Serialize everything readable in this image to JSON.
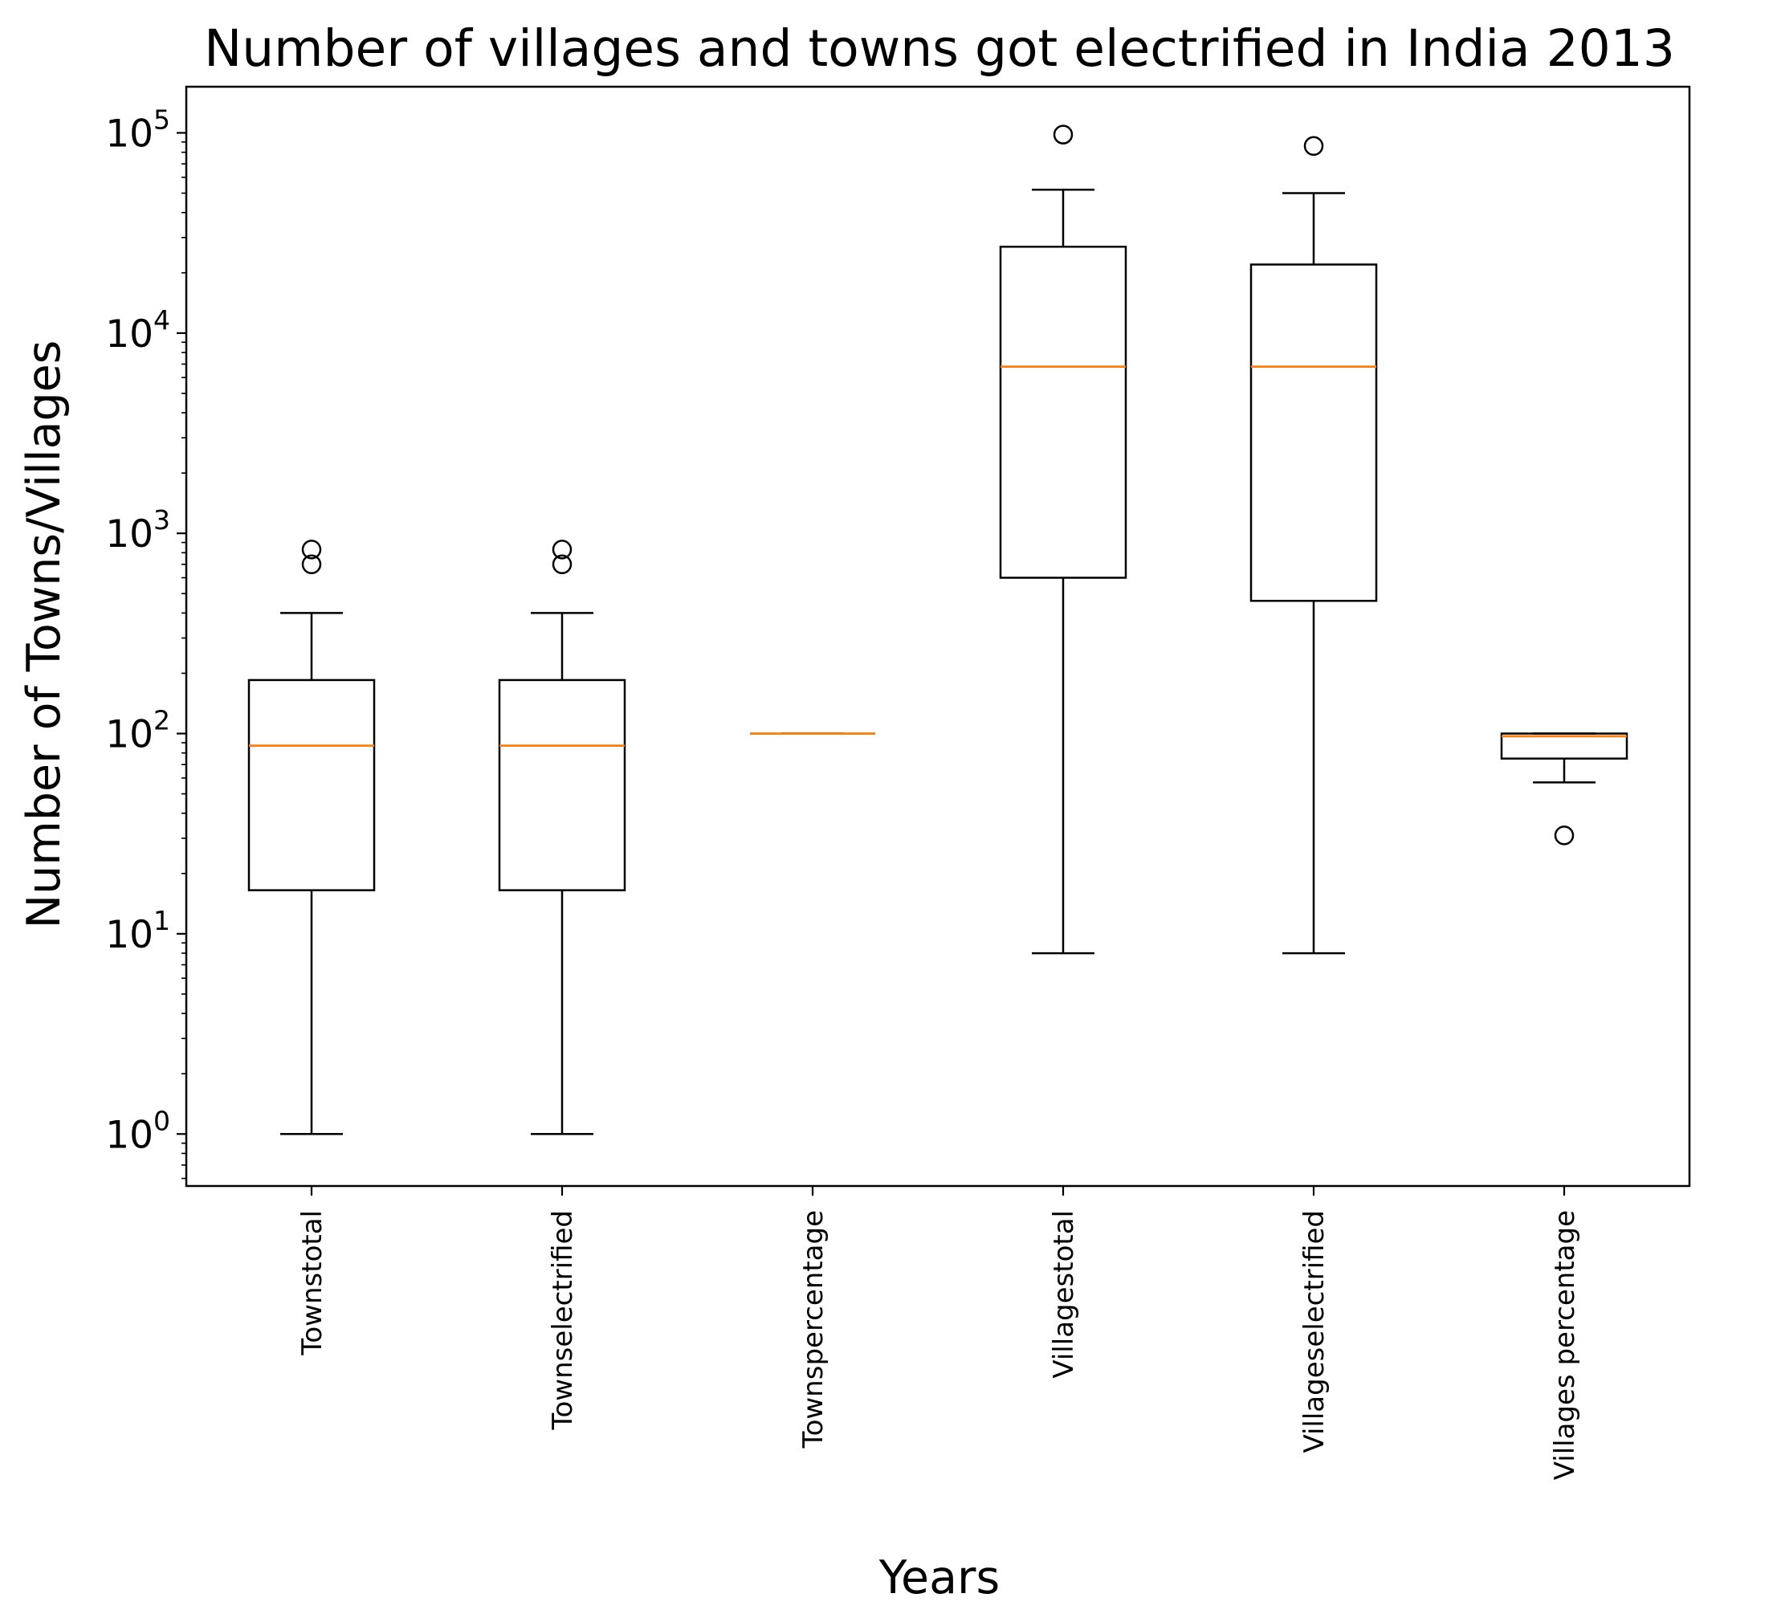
{
  "chart_data": {
    "type": "box",
    "title": "Number of villages and towns got electrified in India 2013",
    "xlabel": "Years",
    "ylabel": "Number of Towns/Villages",
    "yscale": "log",
    "ylim": [
      0.55,
      170000
    ],
    "yticks": [
      {
        "value": 1,
        "base": "10",
        "exp": "0"
      },
      {
        "value": 10,
        "base": "10",
        "exp": "1"
      },
      {
        "value": 100,
        "base": "10",
        "exp": "2"
      },
      {
        "value": 1000,
        "base": "10",
        "exp": "3"
      },
      {
        "value": 10000,
        "base": "10",
        "exp": "4"
      },
      {
        "value": 100000,
        "base": "10",
        "exp": "5"
      }
    ],
    "categories": [
      "Townstotal",
      "Townselectrified",
      "Townspercentage",
      "Villagestotal",
      "Villageselectrified",
      "Villages percentage"
    ],
    "boxes": [
      {
        "whislo": 1,
        "q1": 16.5,
        "med": 87,
        "q3": 185,
        "whishi": 400,
        "fliers": [
          700,
          830
        ]
      },
      {
        "whislo": 1,
        "q1": 16.5,
        "med": 87,
        "q3": 185,
        "whishi": 400,
        "fliers": [
          700,
          830
        ]
      },
      {
        "whislo": 100,
        "q1": 100,
        "med": 100,
        "q3": 100,
        "whishi": 100,
        "fliers": []
      },
      {
        "whislo": 8,
        "q1": 600,
        "med": 6800,
        "q3": 27000,
        "whishi": 52000,
        "fliers": [
          98000
        ]
      },
      {
        "whislo": 8,
        "q1": 460,
        "med": 6800,
        "q3": 22000,
        "whishi": 50000,
        "fliers": [
          86000
        ]
      },
      {
        "whislo": 57,
        "q1": 75,
        "med": 97,
        "q3": 100,
        "whishi": 100,
        "fliers": [
          31
        ]
      }
    ],
    "colors": {
      "box": "#000000",
      "median": "#ff7f0e",
      "frame": "#000000"
    }
  }
}
